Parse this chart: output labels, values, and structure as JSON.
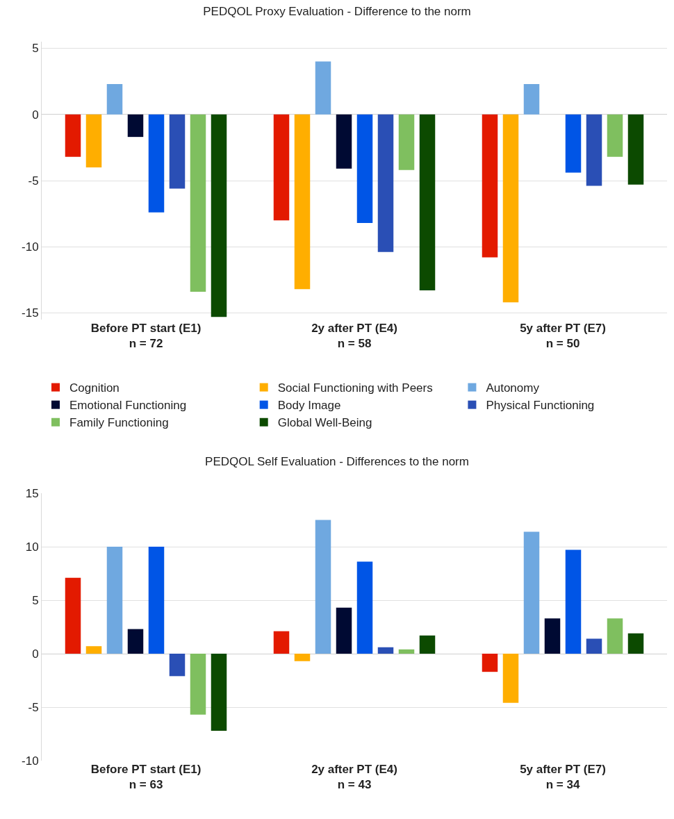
{
  "chart_data": [
    {
      "type": "bar",
      "title": "PEDQOL Proxy Evaluation - Difference to the norm",
      "categories": [
        "Before PT start (E1)\nn = 72",
        "2y after PT (E4)\nn = 58",
        "5y after PT (E7)\nn = 50"
      ],
      "series": [
        {
          "name": "Cognition",
          "color": "#e31a00",
          "values": [
            -3.2,
            -8.0,
            -10.8
          ]
        },
        {
          "name": "Social Functioning with Peers",
          "color": "#ffae00",
          "values": [
            -4.0,
            -13.2,
            -14.2
          ]
        },
        {
          "name": "Autonomy",
          "color": "#6fa8e0",
          "values": [
            2.3,
            4.0,
            2.3
          ]
        },
        {
          "name": "Emotional Functioning",
          "color": "#000a33",
          "values": [
            -1.7,
            -4.1,
            0
          ]
        },
        {
          "name": "Body Image",
          "color": "#0055e6",
          "values": [
            -7.4,
            -8.2,
            -4.4
          ]
        },
        {
          "name": "Physical Functioning",
          "color": "#2a4fb5",
          "values": [
            -5.6,
            -10.4,
            -5.4
          ]
        },
        {
          "name": "Family Functioning",
          "color": "#7fbf5f",
          "values": [
            -13.4,
            -4.2,
            -3.2
          ]
        },
        {
          "name": "Global Well-Being",
          "color": "#0c4a00",
          "values": [
            -15.3,
            -13.3,
            -5.3
          ]
        }
      ],
      "ylim": [
        -15.5,
        5.5
      ],
      "yticks": [
        -15,
        -10,
        -5,
        0,
        5
      ],
      "grid": "y",
      "legend": "bottom"
    },
    {
      "type": "bar",
      "title": "PEDQOL Self Evaluation - Differences to the norm",
      "categories": [
        "Before PT start (E1)\nn = 63",
        "2y after PT (E4)\nn = 43",
        "5y after PT (E7)\nn = 34"
      ],
      "series": [
        {
          "color": "#e31a00",
          "values": [
            7.1,
            2.1,
            -1.7
          ]
        },
        {
          "color": "#ffae00",
          "values": [
            0.7,
            -0.7,
            -4.6
          ]
        },
        {
          "color": "#6fa8e0",
          "values": [
            10.0,
            12.5,
            11.4
          ]
        },
        {
          "color": "#000a33",
          "values": [
            2.3,
            4.3,
            3.3
          ]
        },
        {
          "color": "#0055e6",
          "values": [
            10.0,
            8.6,
            9.7
          ]
        },
        {
          "color": "#2a4fb5",
          "values": [
            -2.1,
            0.6,
            1.4
          ]
        },
        {
          "color": "#7fbf5f",
          "values": [
            -5.7,
            0.4,
            3.3
          ]
        },
        {
          "color": "#0c4a00",
          "values": [
            -7.2,
            1.7,
            1.9
          ]
        }
      ],
      "ylim": [
        -10,
        15
      ],
      "yticks": [
        -10,
        -5,
        0,
        5,
        10,
        15
      ],
      "grid": "y",
      "legend": false
    }
  ]
}
